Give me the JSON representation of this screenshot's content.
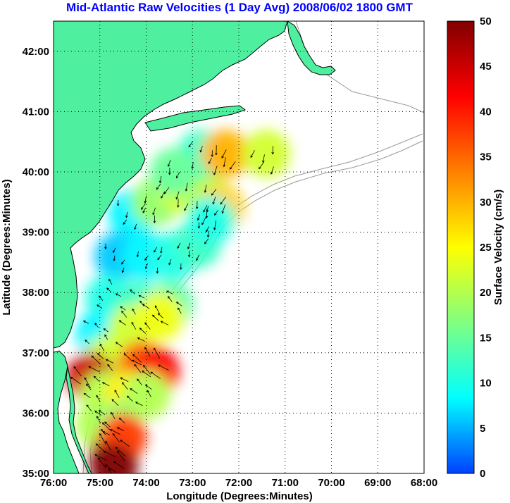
{
  "chart_data": {
    "type": "heatmap",
    "title": "Mid-Atlantic Raw Velocities (1 Day Avg) 2008/06/02 1800 GMT",
    "xlabel": "Longitude (Degrees:Minutes)",
    "ylabel": "Latitude (Degrees:Minutes)",
    "colorbar_label": "Surface Velocity (cm/s)",
    "xlim": [
      -76,
      -68
    ],
    "ylim": [
      35,
      42.5
    ],
    "clim": [
      0,
      50
    ],
    "grid": true,
    "x_ticks": [
      {
        "value": -76,
        "label": "76:00"
      },
      {
        "value": -75,
        "label": "75:00"
      },
      {
        "value": -74,
        "label": "74:00"
      },
      {
        "value": -73,
        "label": "73:00"
      },
      {
        "value": -72,
        "label": "72:00"
      },
      {
        "value": -71,
        "label": "71:00"
      },
      {
        "value": -70,
        "label": "70:00"
      },
      {
        "value": -69,
        "label": "69:00"
      },
      {
        "value": -68,
        "label": "68:00"
      }
    ],
    "y_ticks": [
      {
        "value": 35,
        "label": "35:00"
      },
      {
        "value": 36,
        "label": "36:00"
      },
      {
        "value": 37,
        "label": "37:00"
      },
      {
        "value": 38,
        "label": "38:00"
      },
      {
        "value": 39,
        "label": "39:00"
      },
      {
        "value": 40,
        "label": "40:00"
      },
      {
        "value": 41,
        "label": "41:00"
      },
      {
        "value": 42,
        "label": "42:00"
      }
    ],
    "colorbar_ticks": [
      {
        "value": 0,
        "label": "0"
      },
      {
        "value": 5,
        "label": "5"
      },
      {
        "value": 10,
        "label": "10"
      },
      {
        "value": 15,
        "label": "15"
      },
      {
        "value": 20,
        "label": "20"
      },
      {
        "value": 25,
        "label": "25"
      },
      {
        "value": 30,
        "label": "30"
      },
      {
        "value": 35,
        "label": "35"
      },
      {
        "value": 40,
        "label": "40"
      },
      {
        "value": 45,
        "label": "45"
      },
      {
        "value": 50,
        "label": "50"
      }
    ],
    "colormap": [
      "#0040ff",
      "#00ffff",
      "#80ff80",
      "#ffff00",
      "#ff8000",
      "#ff0000",
      "#800000"
    ],
    "land_color": "#4ef0a0",
    "coastline_color": "#000000",
    "bathymetry_color": "#999999",
    "vector_color": "#000000",
    "velocity_samples": [
      {
        "lon": -74.3,
        "lat": 39.3,
        "speed": 8
      },
      {
        "lon": -73.8,
        "lat": 39.5,
        "speed": 18
      },
      {
        "lon": -73.2,
        "lat": 39.7,
        "speed": 22
      },
      {
        "lon": -72.7,
        "lat": 39.6,
        "speed": 20
      },
      {
        "lon": -72.4,
        "lat": 39.4,
        "speed": 28
      },
      {
        "lon": -72.8,
        "lat": 40.3,
        "speed": 12
      },
      {
        "lon": -73.4,
        "lat": 40.0,
        "speed": 15
      },
      {
        "lon": -72.3,
        "lat": 40.3,
        "speed": 30
      },
      {
        "lon": -74.6,
        "lat": 38.6,
        "speed": 6
      },
      {
        "lon": -74.0,
        "lat": 38.6,
        "speed": 8
      },
      {
        "lon": -73.4,
        "lat": 38.6,
        "speed": 10
      },
      {
        "lon": -72.9,
        "lat": 38.8,
        "speed": 12
      },
      {
        "lon": -72.6,
        "lat": 39.2,
        "speed": 10
      },
      {
        "lon": -74.8,
        "lat": 37.9,
        "speed": 10
      },
      {
        "lon": -74.2,
        "lat": 37.8,
        "speed": 12
      },
      {
        "lon": -73.5,
        "lat": 37.8,
        "speed": 14
      },
      {
        "lon": -75.0,
        "lat": 37.3,
        "speed": 8
      },
      {
        "lon": -74.3,
        "lat": 37.4,
        "speed": 22
      },
      {
        "lon": -73.7,
        "lat": 37.6,
        "speed": 24
      },
      {
        "lon": -74.8,
        "lat": 36.9,
        "speed": 22
      },
      {
        "lon": -74.1,
        "lat": 36.8,
        "speed": 35
      },
      {
        "lon": -73.8,
        "lat": 36.7,
        "speed": 42
      },
      {
        "lon": -75.2,
        "lat": 36.6,
        "speed": 45
      },
      {
        "lon": -74.9,
        "lat": 36.3,
        "speed": 20
      },
      {
        "lon": -74.4,
        "lat": 36.3,
        "speed": 26
      },
      {
        "lon": -74.0,
        "lat": 36.3,
        "speed": 20
      },
      {
        "lon": -75.0,
        "lat": 35.8,
        "speed": 20
      },
      {
        "lon": -74.6,
        "lat": 35.8,
        "speed": 18
      },
      {
        "lon": -74.7,
        "lat": 35.3,
        "speed": 48
      },
      {
        "lon": -74.5,
        "lat": 35.6,
        "speed": 38
      },
      {
        "lon": -74.7,
        "lat": 35.1,
        "speed": 50
      },
      {
        "lon": -71.4,
        "lat": 40.3,
        "speed": 22
      }
    ]
  }
}
